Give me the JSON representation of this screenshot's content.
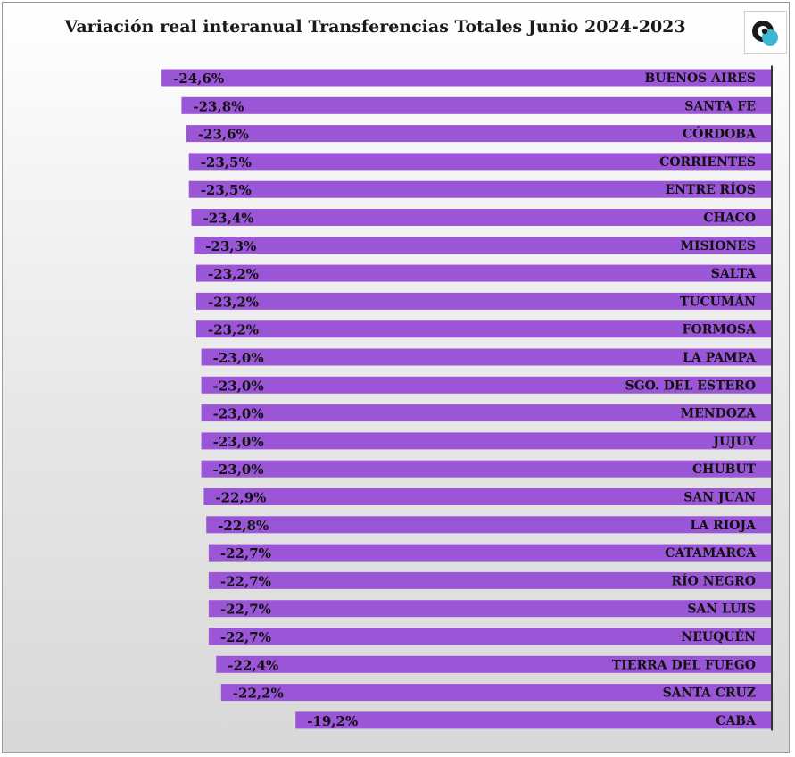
{
  "logo": {
    "icon": "circle-logo-icon",
    "colors": [
      "#1a1a1a",
      "#3bb7d6",
      "#ffffff"
    ]
  },
  "chart_data": {
    "type": "bar",
    "orientation": "horizontal",
    "title": "Variación real interanual Transferencias Totales Junio 2024-2023",
    "categories": [
      "BUENOS AIRES",
      "SANTA FE",
      "CÓRDOBA",
      "CORRIENTES",
      "ENTRE RÍOS",
      "CHACO",
      "MISIONES",
      "SALTA",
      "TUCUMÁN",
      "FORMOSA",
      "LA PAMPA",
      "SGO. DEL ESTERO",
      "MENDOZA",
      "JUJUY",
      "CHUBUT",
      "SAN JUAN",
      "LA RIOJA",
      "CATAMARCA",
      "RÍO NEGRO",
      "SAN LUIS",
      "NEUQUÉN",
      "TIERRA DEL FUEGO",
      "SANTA CRUZ",
      "CABA"
    ],
    "values": [
      -24.6,
      -23.8,
      -23.6,
      -23.5,
      -23.5,
      -23.4,
      -23.3,
      -23.2,
      -23.2,
      -23.2,
      -23.0,
      -23.0,
      -23.0,
      -23.0,
      -23.0,
      -22.9,
      -22.8,
      -22.7,
      -22.7,
      -22.7,
      -22.7,
      -22.4,
      -22.2,
      -19.2
    ],
    "data_labels": [
      "-24,6%",
      "-23,8%",
      "-23,6%",
      "-23,5%",
      "-23,5%",
      "-23,4%",
      "-23,3%",
      "-23,2%",
      "-23,2%",
      "-23,2%",
      "-23,0%",
      "-23,0%",
      "-23,0%",
      "-23,0%",
      "-23,0%",
      "-22,9%",
      "-22,8%",
      "-22,7%",
      "-22,7%",
      "-22,7%",
      "-22,7%",
      "-22,4%",
      "-22,2%",
      "-19,2%"
    ],
    "xlabel": "",
    "ylabel": "",
    "bar_color": "#9a56d6",
    "axis_color": "#333333",
    "grid": false,
    "legend": "none"
  }
}
